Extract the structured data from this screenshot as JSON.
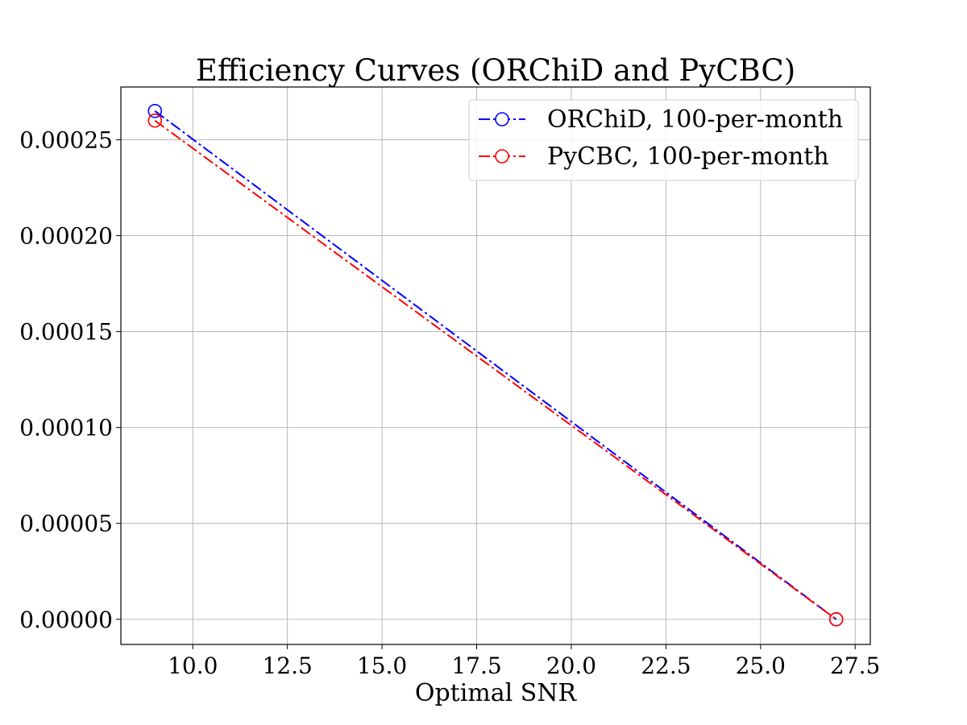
{
  "chart_data": {
    "type": "line",
    "title": "Efficiency Curves (ORChiD and PyCBC)",
    "xlabel": "Optimal SNR",
    "ylabel": "",
    "xlim": [
      8.1,
      27.9
    ],
    "ylim": [
      -1.31e-05,
      0.0002775
    ],
    "xticks": [
      "10.0",
      "12.5",
      "15.0",
      "17.5",
      "20.0",
      "22.5",
      "25.0",
      "27.5"
    ],
    "yticks": [
      "0.00000",
      "0.00005",
      "0.00010",
      "0.00015",
      "0.00020",
      "0.00025"
    ],
    "grid": true,
    "legend_position": "top-right",
    "series": [
      {
        "name": "ORChiD, 100-per-month",
        "color": "#0000ff",
        "x": [
          9,
          27
        ],
        "y": [
          0.000265,
          0.0
        ]
      },
      {
        "name": "PyCBC, 100-per-month",
        "color": "#ff0000",
        "x": [
          9,
          27
        ],
        "y": [
          0.00026,
          0.0
        ]
      }
    ]
  }
}
